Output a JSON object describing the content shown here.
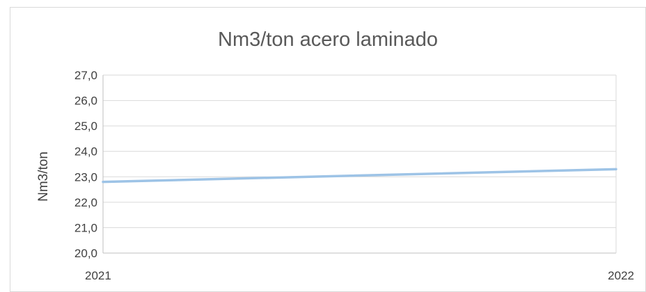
{
  "chart_data": {
    "type": "line",
    "title": "Nm3/ton acero laminado",
    "xlabel": "",
    "ylabel": "Nm3/ton",
    "x": [
      "2021",
      "2022"
    ],
    "series": [
      {
        "values": [
          22.8,
          23.3
        ],
        "color": "#9dc3e6"
      }
    ],
    "ylim": [
      20.0,
      27.0
    ],
    "ytick_step": 1.0,
    "yticks": [
      "20,0",
      "21,0",
      "22,0",
      "23,0",
      "24,0",
      "25,0",
      "26,0",
      "27,0"
    ],
    "grid": true,
    "legend": "none",
    "colors": {
      "grid": "#d9d9d9",
      "axis": "#bfbfbf",
      "text": "#404040",
      "title": "#595959"
    }
  }
}
